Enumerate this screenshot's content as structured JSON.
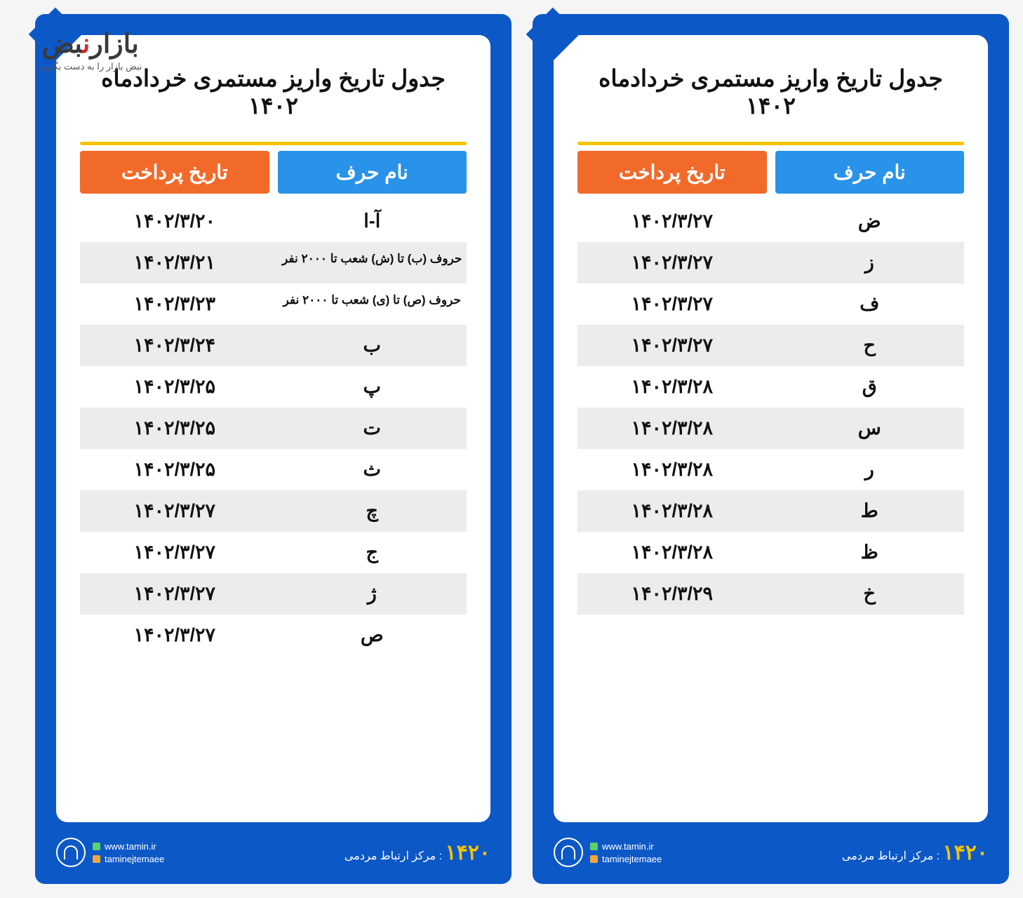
{
  "watermark": {
    "main_a": "بض",
    "main_b": "ن",
    "main_c": "بازار",
    "sub": "نبض بازار را به دست بگیرید"
  },
  "title": "جدول تاریخ واریز مستمری خردادماه ۱۴۰۲",
  "headers": {
    "date": "تاریخ پرداخت",
    "letter": "نام حرف"
  },
  "footer": {
    "site": "www.tamin.ir",
    "handle": "taminejtemaee",
    "contact_label": ": مرکز ارتباط مردمی",
    "contact_num": "۱۴۲۰"
  },
  "panels": [
    {
      "rows": [
        {
          "date": "۱۴۰۲/۳/۲۰",
          "letter": "آ-ا",
          "sm": false
        },
        {
          "date": "۱۴۰۲/۳/۲۱",
          "letter": "حروف (ب) تا (ش) شعب تا ۲۰۰۰ نفر",
          "sm": true
        },
        {
          "date": "۱۴۰۲/۳/۲۳",
          "letter": "حروف (ص) تا (ی) شعب تا ۲۰۰۰ نفر",
          "sm": true
        },
        {
          "date": "۱۴۰۲/۳/۲۴",
          "letter": "ب",
          "sm": false
        },
        {
          "date": "۱۴۰۲/۳/۲۵",
          "letter": "پ",
          "sm": false
        },
        {
          "date": "۱۴۰۲/۳/۲۵",
          "letter": "ت",
          "sm": false
        },
        {
          "date": "۱۴۰۲/۳/۲۵",
          "letter": "ث",
          "sm": false
        },
        {
          "date": "۱۴۰۲/۳/۲۷",
          "letter": "چ",
          "sm": false
        },
        {
          "date": "۱۴۰۲/۳/۲۷",
          "letter": "ج",
          "sm": false
        },
        {
          "date": "۱۴۰۲/۳/۲۷",
          "letter": "ژ",
          "sm": false
        },
        {
          "date": "۱۴۰۲/۳/۲۷",
          "letter": "ص",
          "sm": false
        }
      ]
    },
    {
      "rows": [
        {
          "date": "۱۴۰۲/۳/۲۷",
          "letter": "ض",
          "sm": false
        },
        {
          "date": "۱۴۰۲/۳/۲۷",
          "letter": "ز",
          "sm": false
        },
        {
          "date": "۱۴۰۲/۳/۲۷",
          "letter": "ف",
          "sm": false
        },
        {
          "date": "۱۴۰۲/۳/۲۷",
          "letter": "ح",
          "sm": false
        },
        {
          "date": "۱۴۰۲/۳/۲۸",
          "letter": "ق",
          "sm": false
        },
        {
          "date": "۱۴۰۲/۳/۲۸",
          "letter": "س",
          "sm": false
        },
        {
          "date": "۱۴۰۲/۳/۲۸",
          "letter": "ر",
          "sm": false
        },
        {
          "date": "۱۴۰۲/۳/۲۸",
          "letter": "ط",
          "sm": false
        },
        {
          "date": "۱۴۰۲/۳/۲۸",
          "letter": "ظ",
          "sm": false
        },
        {
          "date": "۱۴۰۲/۳/۲۹",
          "letter": "خ",
          "sm": false
        }
      ]
    }
  ],
  "colors": {
    "panel_bg": "#0d58c7",
    "th_date": "#f26a2a",
    "th_letter": "#2893e8",
    "yellow": "#f4c400",
    "alt_row": "#ececec"
  }
}
